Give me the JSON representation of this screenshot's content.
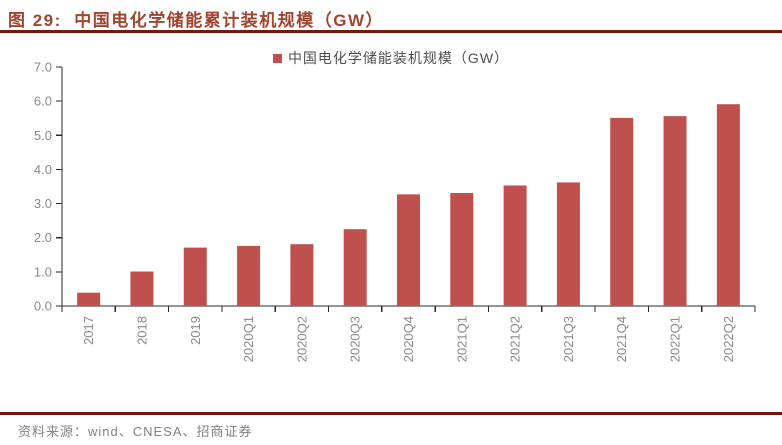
{
  "header": {
    "title": "图 29:  中国电化学储能累计装机规模（GW）"
  },
  "legend": {
    "label": "中国电化学储能装机规模（GW）"
  },
  "footer": {
    "source": "资料来源：wind、CNESA、招商证券"
  },
  "colors": {
    "bar": "#C0504D",
    "title": "#A0452F",
    "rule": "#7A150F",
    "axis_line": "#2B2B2B",
    "axis_text": "#8A8A8A",
    "legend_text": "#4F4F4F",
    "source_text": "#828282"
  },
  "chart_data": {
    "type": "bar",
    "title": "图 29: 中国电化学储能累计装机规模（GW）",
    "legend": [
      "中国电化学储能装机规模（GW）"
    ],
    "legend_position": "top-center",
    "categories": [
      "2017",
      "2018",
      "2019",
      "2020Q1",
      "2020Q2",
      "2020Q3",
      "2020Q4",
      "2021Q1",
      "2021Q2",
      "2021Q3",
      "2021Q4",
      "2022Q1",
      "2022Q2"
    ],
    "values": [
      0.39,
      1.01,
      1.71,
      1.76,
      1.81,
      2.25,
      3.27,
      3.31,
      3.53,
      3.62,
      5.51,
      5.56,
      5.91
    ],
    "xlabel": "",
    "ylabel": "",
    "ylim": [
      0,
      7
    ],
    "ytick_step": 1,
    "ytick_labels": [
      "0.0",
      "1.0",
      "2.0",
      "3.0",
      "4.0",
      "5.0",
      "6.0",
      "7.0"
    ],
    "x_tick_rotation": 90,
    "grid": false,
    "bar_color": "#C0504D"
  }
}
